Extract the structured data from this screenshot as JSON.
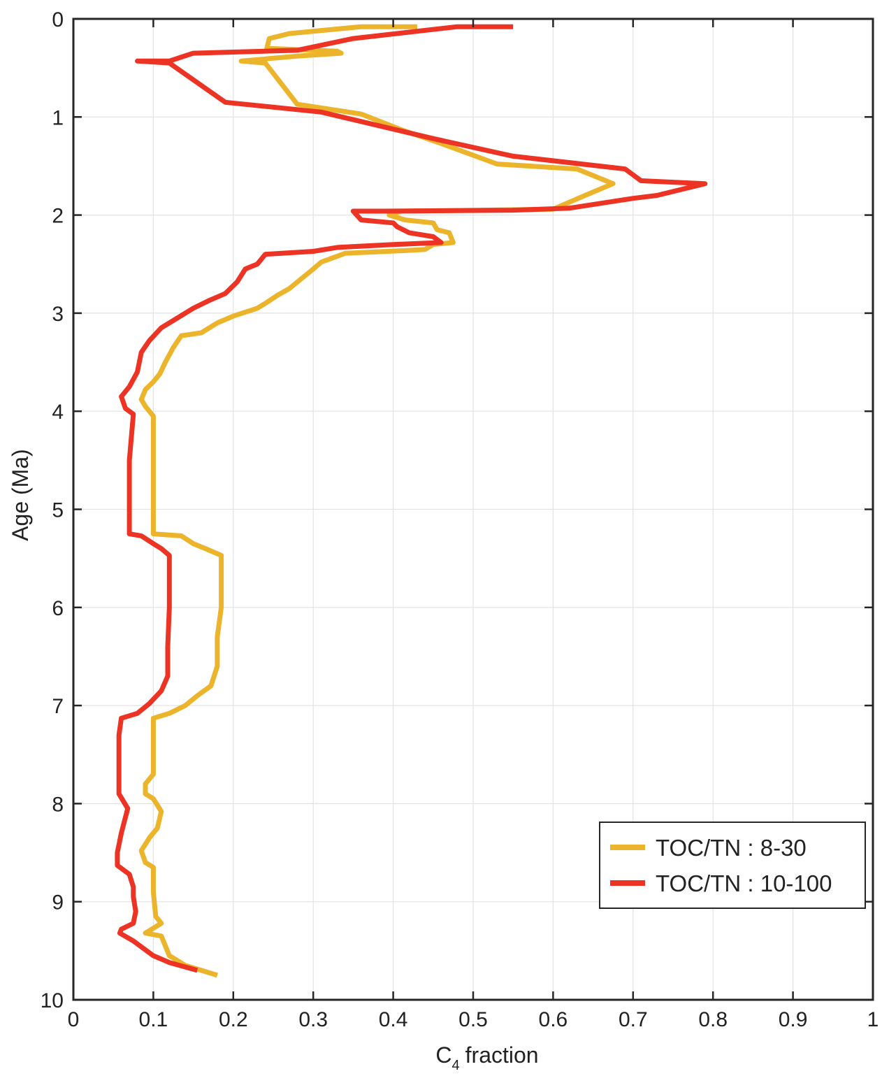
{
  "chart_data": {
    "type": "line",
    "xlabel": "fraction",
    "xlabel_prefix": "C",
    "xlabel_subscript": "4",
    "ylabel": "Age (Ma)",
    "xlim": [
      0,
      1
    ],
    "ylim": [
      0,
      10
    ],
    "y_reversed": true,
    "grid": true,
    "legend_position": "bottom-right",
    "x_ticks": [
      0,
      0.1,
      0.2,
      0.3,
      0.4,
      0.5,
      0.6,
      0.7,
      0.8,
      0.9,
      1
    ],
    "x_tick_labels": [
      "0",
      "0.1",
      "0.2",
      "0.3",
      "0.4",
      "0.5",
      "0.6",
      "0.7",
      "0.8",
      "0.9",
      "1"
    ],
    "y_ticks": [
      0,
      1,
      2,
      3,
      4,
      5,
      6,
      7,
      8,
      9,
      10
    ],
    "y_tick_labels": [
      "0",
      "1",
      "2",
      "3",
      "4",
      "5",
      "6",
      "7",
      "8",
      "9",
      "10"
    ],
    "series": [
      {
        "name": "TOC/TN : 8-30",
        "color": "#ebb42a",
        "points": [
          [
            0.43,
            0.08
          ],
          [
            0.36,
            0.08
          ],
          [
            0.27,
            0.15
          ],
          [
            0.245,
            0.2
          ],
          [
            0.242,
            0.3
          ],
          [
            0.33,
            0.33
          ],
          [
            0.335,
            0.35
          ],
          [
            0.28,
            0.38
          ],
          [
            0.21,
            0.43
          ],
          [
            0.24,
            0.45
          ],
          [
            0.28,
            0.87
          ],
          [
            0.36,
            0.97
          ],
          [
            0.41,
            1.13
          ],
          [
            0.46,
            1.27
          ],
          [
            0.53,
            1.48
          ],
          [
            0.63,
            1.53
          ],
          [
            0.675,
            1.68
          ],
          [
            0.64,
            1.8
          ],
          [
            0.6,
            1.94
          ],
          [
            0.51,
            1.95
          ],
          [
            0.41,
            1.96
          ],
          [
            0.395,
            2.0
          ],
          [
            0.415,
            2.05
          ],
          [
            0.45,
            2.08
          ],
          [
            0.455,
            2.15
          ],
          [
            0.47,
            2.18
          ],
          [
            0.475,
            2.28
          ],
          [
            0.45,
            2.3
          ],
          [
            0.44,
            2.35
          ],
          [
            0.42,
            2.36
          ],
          [
            0.34,
            2.39
          ],
          [
            0.31,
            2.48
          ],
          [
            0.3,
            2.55
          ],
          [
            0.285,
            2.65
          ],
          [
            0.27,
            2.75
          ],
          [
            0.255,
            2.82
          ],
          [
            0.24,
            2.9
          ],
          [
            0.23,
            2.95
          ],
          [
            0.2,
            3.03
          ],
          [
            0.18,
            3.1
          ],
          [
            0.16,
            3.2
          ],
          [
            0.135,
            3.23
          ],
          [
            0.125,
            3.35
          ],
          [
            0.115,
            3.5
          ],
          [
            0.108,
            3.62
          ],
          [
            0.1,
            3.7
          ],
          [
            0.09,
            3.78
          ],
          [
            0.085,
            3.88
          ],
          [
            0.09,
            3.95
          ],
          [
            0.1,
            4.05
          ],
          [
            0.1,
            4.5
          ],
          [
            0.1,
            5.25
          ],
          [
            0.135,
            5.27
          ],
          [
            0.15,
            5.35
          ],
          [
            0.165,
            5.4
          ],
          [
            0.185,
            5.47
          ],
          [
            0.185,
            6.0
          ],
          [
            0.18,
            6.3
          ],
          [
            0.18,
            6.6
          ],
          [
            0.172,
            6.8
          ],
          [
            0.155,
            6.9
          ],
          [
            0.14,
            7.0
          ],
          [
            0.12,
            7.08
          ],
          [
            0.1,
            7.13
          ],
          [
            0.1,
            7.4
          ],
          [
            0.1,
            7.7
          ],
          [
            0.09,
            7.8
          ],
          [
            0.09,
            7.9
          ],
          [
            0.1,
            7.95
          ],
          [
            0.11,
            8.08
          ],
          [
            0.105,
            8.25
          ],
          [
            0.095,
            8.35
          ],
          [
            0.085,
            8.48
          ],
          [
            0.09,
            8.6
          ],
          [
            0.1,
            8.65
          ],
          [
            0.1,
            8.9
          ],
          [
            0.103,
            9.15
          ],
          [
            0.11,
            9.22
          ],
          [
            0.1,
            9.27
          ],
          [
            0.09,
            9.32
          ],
          [
            0.11,
            9.35
          ],
          [
            0.12,
            9.55
          ],
          [
            0.14,
            9.65
          ],
          [
            0.18,
            9.75
          ]
        ]
      },
      {
        "name": "TOC/TN : 10-100",
        "color": "#ec3324",
        "points": [
          [
            0.55,
            0.08
          ],
          [
            0.48,
            0.08
          ],
          [
            0.35,
            0.2
          ],
          [
            0.28,
            0.32
          ],
          [
            0.15,
            0.35
          ],
          [
            0.12,
            0.43
          ],
          [
            0.08,
            0.43
          ],
          [
            0.12,
            0.45
          ],
          [
            0.19,
            0.85
          ],
          [
            0.31,
            0.95
          ],
          [
            0.45,
            1.22
          ],
          [
            0.55,
            1.4
          ],
          [
            0.69,
            1.53
          ],
          [
            0.71,
            1.65
          ],
          [
            0.79,
            1.68
          ],
          [
            0.73,
            1.8
          ],
          [
            0.7,
            1.83
          ],
          [
            0.62,
            1.93
          ],
          [
            0.55,
            1.95
          ],
          [
            0.39,
            1.96
          ],
          [
            0.35,
            1.96
          ],
          [
            0.36,
            2.05
          ],
          [
            0.4,
            2.08
          ],
          [
            0.405,
            2.12
          ],
          [
            0.42,
            2.18
          ],
          [
            0.45,
            2.22
          ],
          [
            0.46,
            2.28
          ],
          [
            0.4,
            2.3
          ],
          [
            0.33,
            2.33
          ],
          [
            0.3,
            2.37
          ],
          [
            0.24,
            2.4
          ],
          [
            0.23,
            2.5
          ],
          [
            0.215,
            2.55
          ],
          [
            0.205,
            2.68
          ],
          [
            0.19,
            2.8
          ],
          [
            0.17,
            2.87
          ],
          [
            0.15,
            2.95
          ],
          [
            0.13,
            3.05
          ],
          [
            0.11,
            3.15
          ],
          [
            0.095,
            3.28
          ],
          [
            0.085,
            3.4
          ],
          [
            0.08,
            3.6
          ],
          [
            0.07,
            3.75
          ],
          [
            0.06,
            3.85
          ],
          [
            0.065,
            3.97
          ],
          [
            0.075,
            4.03
          ],
          [
            0.07,
            4.5
          ],
          [
            0.07,
            5.25
          ],
          [
            0.085,
            5.27
          ],
          [
            0.1,
            5.35
          ],
          [
            0.11,
            5.4
          ],
          [
            0.12,
            5.47
          ],
          [
            0.12,
            6.0
          ],
          [
            0.118,
            6.4
          ],
          [
            0.118,
            6.7
          ],
          [
            0.11,
            6.85
          ],
          [
            0.095,
            6.98
          ],
          [
            0.08,
            7.08
          ],
          [
            0.06,
            7.13
          ],
          [
            0.057,
            7.3
          ],
          [
            0.057,
            7.6
          ],
          [
            0.057,
            7.9
          ],
          [
            0.068,
            8.05
          ],
          [
            0.06,
            8.3
          ],
          [
            0.055,
            8.5
          ],
          [
            0.055,
            8.63
          ],
          [
            0.07,
            8.72
          ],
          [
            0.075,
            8.85
          ],
          [
            0.075,
            8.95
          ],
          [
            0.078,
            9.1
          ],
          [
            0.075,
            9.22
          ],
          [
            0.06,
            9.28
          ],
          [
            0.058,
            9.32
          ],
          [
            0.075,
            9.4
          ],
          [
            0.1,
            9.55
          ],
          [
            0.12,
            9.62
          ],
          [
            0.155,
            9.7
          ]
        ]
      }
    ]
  }
}
